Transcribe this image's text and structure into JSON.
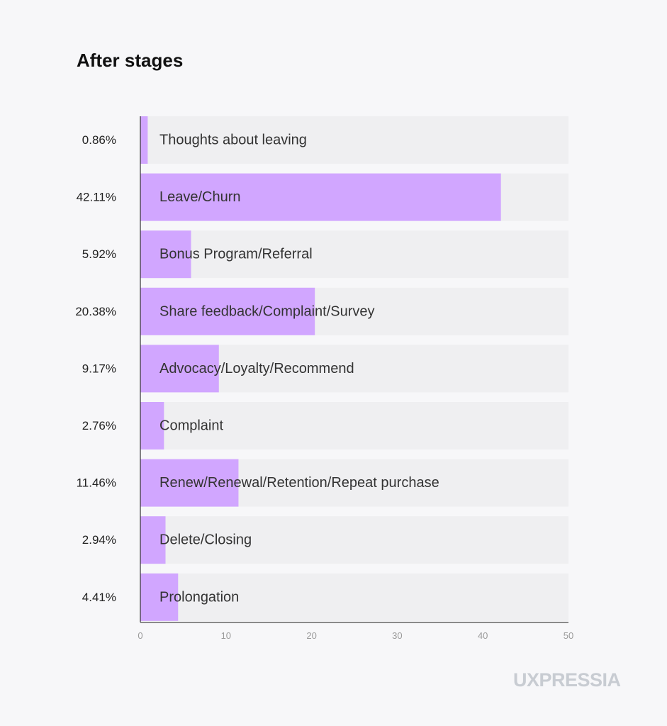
{
  "chart_data": {
    "type": "bar",
    "orientation": "horizontal",
    "title": "After stages",
    "categories": [
      "Thoughts about leaving",
      "Leave/Churn",
      "Bonus Program/Referral",
      "Share feedback/Complaint/Survey",
      "Advocacy/Loyalty/Recommend",
      "Complaint",
      "Renew/Renewal/Retention/Repeat purchase",
      "Delete/Closing",
      "Prolongation"
    ],
    "values": [
      0.86,
      42.11,
      5.92,
      20.38,
      9.17,
      2.76,
      11.46,
      2.94,
      4.41
    ],
    "value_labels": [
      "0.86%",
      "42.11%",
      "5.92%",
      "20.38%",
      "9.17%",
      "2.76%",
      "11.46%",
      "2.94%",
      "4.41%"
    ],
    "xlim": [
      0,
      50
    ],
    "xticks": [
      0,
      10,
      20,
      30,
      40,
      50
    ],
    "xlabel": "",
    "ylabel": "",
    "grid": false,
    "colors": {
      "bar": "#d1a6ff",
      "track": "#efeff1",
      "axis": "#333333",
      "background": "#f7f7f9"
    }
  },
  "watermark": "UXPRESSIA"
}
